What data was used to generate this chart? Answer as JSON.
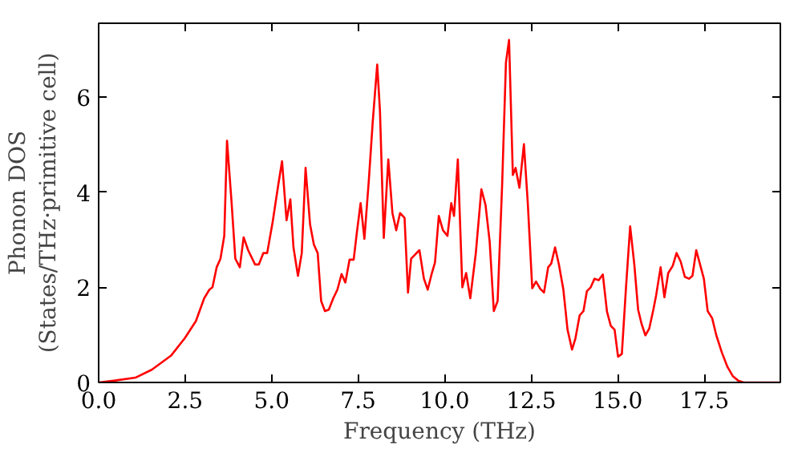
{
  "chart_data": {
    "type": "line",
    "xlabel": "Frequency (THz)",
    "ylabel": "Phonon DOS\n(States/THz·primitive cell)",
    "x": [
      0,
      0.47,
      1.06,
      1.54,
      2.1,
      2.49,
      2.81,
      3.05,
      3.2,
      3.29,
      3.41,
      3.52,
      3.63,
      3.71,
      3.84,
      3.95,
      4.08,
      4.19,
      4.32,
      4.52,
      4.63,
      4.76,
      4.87,
      5.03,
      5.19,
      5.3,
      5.43,
      5.54,
      5.63,
      5.76,
      5.87,
      5.98,
      6.11,
      6.22,
      6.33,
      6.43,
      6.54,
      6.65,
      6.78,
      6.9,
      7.02,
      7.13,
      7.25,
      7.37,
      7.46,
      7.57,
      7.68,
      7.81,
      7.92,
      8.05,
      8.13,
      8.24,
      8.37,
      8.49,
      8.6,
      8.71,
      8.84,
      8.94,
      9.03,
      9.16,
      9.27,
      9.4,
      9.51,
      9.63,
      9.72,
      9.83,
      9.95,
      10.08,
      10.19,
      10.27,
      10.38,
      10.51,
      10.62,
      10.74,
      10.9,
      11.06,
      11.18,
      11.3,
      11.42,
      11.53,
      11.66,
      11.77,
      11.86,
      11.97,
      12.05,
      12.16,
      12.29,
      12.4,
      12.53,
      12.64,
      12.76,
      12.87,
      12.99,
      13.08,
      13.19,
      13.3,
      13.43,
      13.55,
      13.68,
      13.78,
      13.9,
      14.01,
      14.11,
      14.22,
      14.33,
      14.45,
      14.57,
      14.69,
      14.8,
      14.91,
      15.01,
      15.12,
      15.24,
      15.36,
      15.48,
      15.59,
      15.69,
      15.8,
      15.91,
      16.03,
      16.11,
      16.24,
      16.35,
      16.46,
      16.59,
      16.7,
      16.82,
      16.94,
      17.06,
      17.16,
      17.27,
      17.38,
      17.49,
      17.6,
      17.73,
      17.85,
      18.01,
      18.17,
      18.33,
      18.48,
      18.64,
      19.67
    ],
    "series": [
      {
        "color": "#ff0000",
        "values": [
          0,
          0.04,
          0.1,
          0.27,
          0.57,
          0.93,
          1.29,
          1.77,
          1.95,
          2.0,
          2.42,
          2.6,
          3.08,
          5.08,
          3.8,
          2.6,
          2.42,
          3.05,
          2.78,
          2.48,
          2.48,
          2.72,
          2.72,
          3.38,
          4.15,
          4.65,
          3.41,
          3.85,
          2.84,
          2.24,
          2.72,
          4.51,
          3.32,
          2.9,
          2.72,
          1.71,
          1.5,
          1.53,
          1.77,
          1.95,
          2.28,
          2.1,
          2.58,
          2.58,
          3.14,
          3.77,
          3.02,
          4.27,
          5.47,
          6.68,
          5.7,
          3.04,
          4.69,
          3.56,
          3.2,
          3.56,
          3.46,
          1.89,
          2.6,
          2.7,
          2.78,
          2.18,
          1.95,
          2.3,
          2.52,
          3.5,
          3.2,
          3.08,
          3.77,
          3.5,
          4.69,
          2.0,
          2.3,
          1.77,
          2.72,
          4.06,
          3.73,
          2.96,
          1.5,
          1.71,
          4.15,
          6.72,
          7.2,
          4.36,
          4.51,
          4.09,
          5.01,
          3.79,
          1.98,
          2.12,
          1.97,
          1.89,
          2.42,
          2.5,
          2.84,
          2.48,
          1.95,
          1.11,
          0.69,
          0.93,
          1.41,
          1.5,
          1.92,
          2.0,
          2.18,
          2.15,
          2.27,
          1.49,
          1.19,
          1.11,
          0.54,
          0.6,
          2.0,
          3.28,
          2.48,
          1.53,
          1.23,
          0.99,
          1.13,
          1.53,
          1.83,
          2.42,
          1.79,
          2.3,
          2.45,
          2.72,
          2.54,
          2.22,
          2.18,
          2.24,
          2.78,
          2.48,
          2.18,
          1.5,
          1.35,
          0.99,
          0.63,
          0.33,
          0.13,
          0.04,
          0,
          0
        ]
      }
    ],
    "xlim": [
      0,
      19.7
    ],
    "ylim": [
      0,
      7.55
    ],
    "xticks": [
      {
        "value": 0,
        "label": "0.0"
      },
      {
        "value": 2.5,
        "label": "2.5"
      },
      {
        "value": 5,
        "label": "5.0"
      },
      {
        "value": 7.5,
        "label": "7.5"
      },
      {
        "value": 10,
        "label": "10.0"
      },
      {
        "value": 12.5,
        "label": "12.5"
      },
      {
        "value": 15,
        "label": "15.0"
      },
      {
        "value": 17.5,
        "label": "17.5"
      }
    ],
    "yticks": [
      0,
      2,
      4,
      6
    ],
    "grid": false,
    "marker": "none",
    "line_style": "solid"
  }
}
